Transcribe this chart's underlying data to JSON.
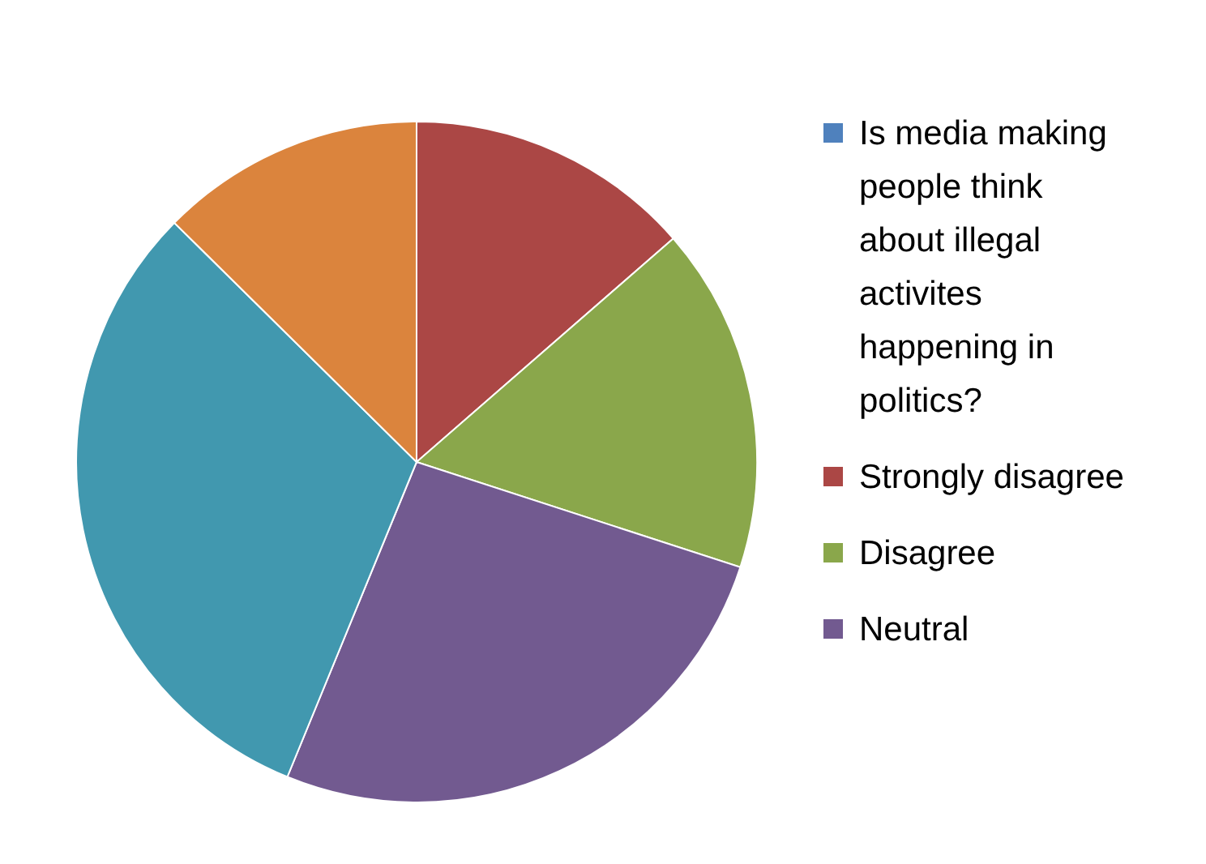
{
  "chart_data": {
    "type": "pie",
    "categories": [
      "Is media making people think about illegal activites happening in politics?",
      "Strongly disagree",
      "Disagree",
      "Neutral",
      null,
      null
    ],
    "values": [
      0,
      13.6,
      16.4,
      26.2,
      31.2,
      12.6
    ],
    "colors": [
      "#4f81bd",
      "#ab4745",
      "#8aa74b",
      "#725a90",
      "#4198af",
      "#db843d"
    ],
    "legend": "right"
  }
}
